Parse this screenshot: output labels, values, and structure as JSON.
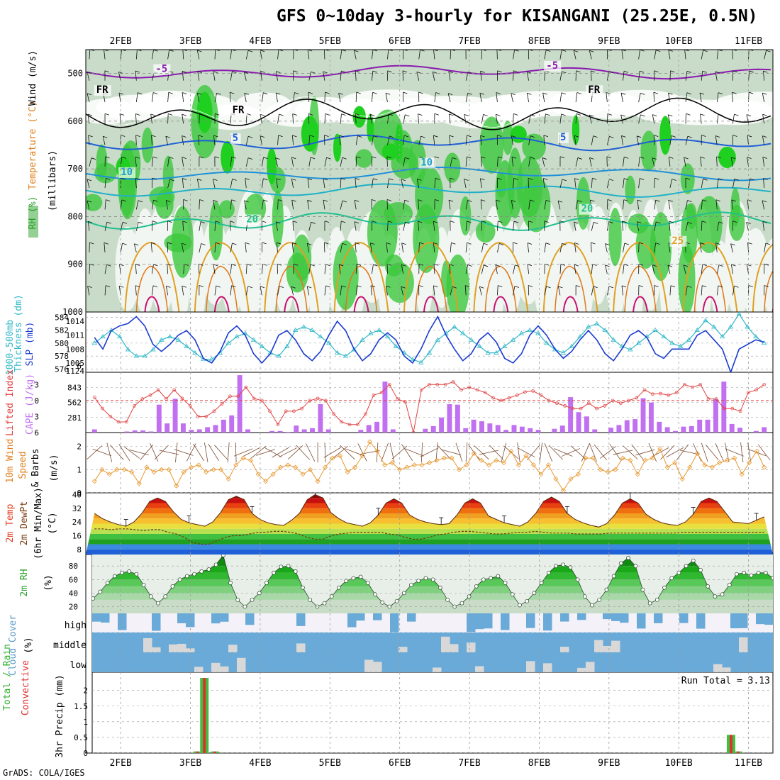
{
  "title": "GFS 0~10day 3-hourly for KISANGANI (25.25E, 0.5N)",
  "credit": "GrADS: COLA/IGES",
  "date_labels": [
    "2FEB",
    "3FEB",
    "4FEB",
    "5FEB",
    "6FEB",
    "7FEB",
    "8FEB",
    "9FEB",
    "10FEB",
    "11FEB"
  ],
  "colors": {
    "rh_green": "#3cc83c",
    "rh_light": "#d6e8d6",
    "temp_purple": "#8a1ab0",
    "temp_blue": "#1f5fd8",
    "temp_cyan": "#20b0c8",
    "temp_teal": "#20c090",
    "temp_orange": "#e0a020",
    "temp_magenta": "#c8106e",
    "slp_blue": "#1a3bd0",
    "thick_cyan": "#30b8c8",
    "lifted_red": "#e04040",
    "cape_purple": "#c070f0",
    "wind_orange": "#e89830",
    "rh_line": "#2a9a2a",
    "cloud_blue": "#6aaad8",
    "cloud_gray": "#d8d8d8",
    "precip_green": "#40c040",
    "precip_red": "#e03030"
  },
  "chart_data": [
    {
      "id": "upper_air",
      "type": "heatmap",
      "title": "Wind (m/s) / Temperature (°C) / RH (%)",
      "ylabel": "(millibars)",
      "y_ticks": [
        500,
        600,
        700,
        800,
        900,
        1000
      ],
      "ylim": [
        1000,
        450
      ],
      "ylabels": [
        {
          "text": "RH (%)",
          "color": "#2aa02a"
        },
        {
          "text": "Temperature (°C)",
          "color": "#e08020"
        },
        {
          "text": "Wind (m/s)",
          "color": "#000000"
        },
        {
          "text": "(millibars)",
          "color": "#000000"
        }
      ],
      "contour_labels": [
        {
          "text": "-5",
          "color": "#8a1ab0"
        },
        {
          "text": "-5",
          "color": "#8a1ab0"
        },
        {
          "text": "FR",
          "color": "#000000"
        },
        {
          "text": "FR",
          "color": "#000000"
        },
        {
          "text": "FR",
          "color": "#000000"
        },
        {
          "text": "5",
          "color": "#1f5fd8"
        },
        {
          "text": "5",
          "color": "#1f5fd8"
        },
        {
          "text": "10",
          "color": "#20a0d0"
        },
        {
          "text": "10",
          "color": "#20a0d0"
        },
        {
          "text": "20",
          "color": "#20c090"
        },
        {
          "text": "20",
          "color": "#20c090"
        },
        {
          "text": "25",
          "color": "#e0a020"
        }
      ]
    },
    {
      "id": "thickness_slp",
      "type": "line",
      "title": "1000-500mb Thickness (dm) / SLP (mb)",
      "left_ticks": [
        576,
        578,
        580,
        582,
        584
      ],
      "right_ticks": [
        1124,
        1005,
        1008,
        1011,
        1014
      ],
      "ylabels": [
        {
          "text": "1000-500mb",
          "color": "#30b8c8"
        },
        {
          "text": "Thickness (dm)",
          "color": "#30b8c8"
        },
        {
          "text": "SLP (mb)",
          "color": "#1a3bd0"
        }
      ],
      "series": [
        {
          "name": "SLP (mb)",
          "values": [
            1010.5,
            1008,
            1012,
            1013,
            1013.5,
            1015,
            1013,
            1009,
            1007.5,
            1009,
            1011,
            1012,
            1010,
            1006,
            1005,
            1007.5,
            1011.5,
            1013,
            1011,
            1007,
            1005,
            1007,
            1011,
            1012,
            1010,
            1007,
            1005.5,
            1007.5,
            1011,
            1014,
            1012,
            1008,
            1005.5,
            1007,
            1010,
            1011.5,
            1010,
            1006.5,
            1005,
            1008,
            1012,
            1015,
            1011,
            1008,
            1005.5,
            1007,
            1010,
            1011.5,
            1009.5,
            1006,
            1005,
            1007,
            1011,
            1013,
            1011,
            1008,
            1006,
            1007.5,
            1010,
            1012,
            1010,
            1007,
            1005.5,
            1008,
            1011,
            1012,
            1010.5,
            1007,
            1006,
            1008,
            1008,
            1008,
            1011,
            1012,
            1010,
            1008,
            1003,
            1008,
            1009,
            1010,
            1009.5
          ]
        },
        {
          "name": "Thickness (dm)",
          "values": [
            580,
            581,
            582,
            581,
            579,
            578,
            578,
            579,
            580.5,
            581,
            580.5,
            579.5,
            578.5,
            577.5,
            577.5,
            578.5,
            580,
            581,
            581.5,
            580.5,
            579.5,
            578.5,
            578,
            579.5,
            582,
            582.5,
            582,
            581,
            580,
            578.5,
            578,
            579,
            580.5,
            581.5,
            582,
            581,
            579.5,
            578.5,
            577.5,
            577,
            578.5,
            580.5,
            581.5,
            582.5,
            581.5,
            580.5,
            579.5,
            578.5,
            578.5,
            579.5,
            580.5,
            581.5,
            582,
            581.5,
            580,
            579,
            578.5,
            579.5,
            581,
            582.5,
            583,
            582,
            580.5,
            579.5,
            579,
            580,
            581,
            582,
            581,
            580,
            579.5,
            580.5,
            582,
            583.5,
            582.5,
            581,
            582.5,
            584.5,
            582.5,
            581,
            580
          ]
        }
      ]
    },
    {
      "id": "lifted_cape",
      "type": "bar",
      "title": "Lifted Index / CAPE (J/kg)",
      "left_ticks": [
        -3,
        0,
        3,
        6
      ],
      "right_ticks": [
        843,
        562,
        281
      ],
      "ylabels": [
        {
          "text": "Lifted Index",
          "color": "#e04040"
        },
        {
          "text": "CAPE (J/kg)",
          "color": "#c070f0"
        }
      ],
      "series": [
        {
          "name": "CAPE (J/kg)",
          "values": [
            60,
            0,
            0,
            0,
            20,
            40,
            40,
            20,
            520,
            170,
            630,
            170,
            50,
            60,
            100,
            140,
            240,
            320,
            1070,
            60,
            0,
            0,
            30,
            30,
            10,
            130,
            60,
            80,
            530,
            60,
            0,
            0,
            0,
            50,
            140,
            200,
            950,
            60,
            0,
            0,
            0,
            70,
            120,
            280,
            530,
            520,
            80,
            240,
            210,
            170,
            140,
            50,
            140,
            110,
            80,
            50,
            0,
            70,
            130,
            660,
            380,
            300,
            60,
            0,
            90,
            140,
            230,
            250,
            640,
            560,
            200,
            100,
            30,
            110,
            120,
            240,
            240,
            620,
            950,
            160,
            90,
            0,
            30,
            100
          ]
        },
        {
          "name": "Lifted Index",
          "values": [
            -0.6,
            1.5,
            3,
            4,
            4,
            1,
            -0.3,
            -1,
            -2,
            -0.3,
            -2,
            -0.4,
            1,
            3,
            3,
            2,
            0.6,
            -0.8,
            -0.8,
            -2.5,
            -0.4,
            0,
            2,
            4.5,
            2,
            2,
            1.5,
            0,
            -0.4,
            0,
            2.5,
            4,
            4.5,
            4.5,
            2.5,
            -1,
            -1.5,
            -3,
            -0.3,
            0.3,
            6,
            -2,
            -3,
            -3,
            -3,
            -3.5,
            -2,
            -2.5,
            -2,
            -1.5,
            -0.5,
            0,
            -0.5,
            -1,
            -1.6,
            -1.8,
            -1,
            0,
            0.5,
            1,
            1.5,
            1.5,
            0.5,
            1.5,
            1,
            0,
            0.5,
            0,
            -0.5,
            -2,
            -1.2,
            -1.3,
            -1,
            -1.5,
            -3,
            -2.5,
            -3,
            -0.3,
            -0.3,
            1.5,
            1.5,
            2,
            -1.5,
            -2,
            -3
          ]
        }
      ]
    },
    {
      "id": "wind10m",
      "type": "line",
      "title": "10m Wind Speed & Barbs (m/s)",
      "left_ticks": [
        0,
        1,
        2
      ],
      "ylabels": [
        {
          "text": "10m Wind",
          "color": "#e08020"
        },
        {
          "text": "Speed",
          "color": "#e08020"
        },
        {
          "text": "& Barbs",
          "color": "#000000"
        },
        {
          "text": "(m/s)",
          "color": "#000000"
        }
      ],
      "series": [
        {
          "name": "Wind speed (m/s)",
          "values": [
            0.5,
            1,
            0.8,
            1,
            1,
            0.9,
            0.4,
            1.1,
            0.9,
            1,
            1,
            0.3,
            0.9,
            1.1,
            1.2,
            0.9,
            1,
            1,
            0.6,
            1.2,
            1.5,
            1.4,
            0.8,
            0.5,
            0.8,
            1.1,
            1.2,
            1.1,
            0.8,
            1,
            0.5,
            1.1,
            1.5,
            1.6,
            0.9,
            1.1,
            1.6,
            2.2,
            1.8,
            1.2,
            1.3,
            1,
            1.1,
            1.2,
            1.2,
            1.3,
            1.4,
            1.5,
            1.5,
            1,
            1.2,
            1.7,
            1.4,
            1.2,
            1.4,
            1.3,
            1.8,
            1.2,
            1.6,
            1.2,
            0.8,
            1.2,
            0.6,
            0.1,
            0.6,
            0.8,
            1.5,
            1.5,
            1,
            0.9,
            1,
            1.5,
            1.4,
            0.8,
            1.4,
            1.5,
            1.9,
            1.1,
            1.3,
            0.6,
            1.1,
            1.7,
            1.2,
            1.1,
            1.3,
            1.4,
            1.5,
            0.8,
            1.3,
            1.8,
            1.1
          ]
        }
      ]
    },
    {
      "id": "temp2m",
      "type": "area",
      "title": "2m Temp / 2m DewPt (6hr Min/Max) (°C)",
      "left_ticks": [
        8,
        16,
        24,
        32,
        40
      ],
      "ylabels": [
        {
          "text": "2m Temp",
          "color": "#e04020"
        },
        {
          "text": "2m DewPt",
          "color": "#7a3a10"
        },
        {
          "text": "(6hr Min/Max)",
          "color": "#000000"
        },
        {
          "text": "(°C)",
          "color": "#000000"
        }
      ],
      "series": [
        {
          "name": "2m Temp (°C)",
          "values": [
            29,
            26,
            24,
            22.5,
            21.5,
            24,
            29,
            36,
            38,
            36,
            30,
            25.5,
            23.5,
            22.5,
            21.5,
            24,
            29.5,
            37,
            39,
            37,
            29,
            25.5,
            23.5,
            22.5,
            22,
            25,
            29,
            37,
            40,
            38,
            29.5,
            26,
            23.5,
            22.5,
            21.5,
            23.5,
            28,
            35,
            37.5,
            35,
            28,
            25.5,
            24,
            23,
            22.5,
            23,
            28,
            35,
            37.5,
            35,
            27.5,
            25.5,
            23.5,
            22.5,
            21.5,
            24,
            29,
            36,
            38.5,
            36,
            29,
            25.5,
            23.5,
            22,
            21,
            23,
            28,
            35,
            37.5,
            35,
            28.5,
            25.5,
            23.5,
            22.5,
            22,
            24,
            28.5,
            36,
            38,
            36,
            30,
            24,
            23.5,
            23,
            25,
            27
          ]
        },
        {
          "name": "2m DewPt (°C)",
          "values": [
            20,
            20,
            19.5,
            20,
            20,
            19.5,
            19,
            19.5,
            19.5,
            18,
            17,
            15,
            12,
            11,
            11,
            13,
            15,
            16,
            16,
            17,
            18,
            18,
            18.5,
            18.5,
            18,
            17,
            15,
            14,
            14,
            16,
            17,
            17.5,
            18,
            18,
            18,
            18,
            17,
            16.5,
            15,
            14,
            14,
            15,
            16.5,
            17,
            18,
            18.5,
            18.5,
            18,
            17.5,
            17,
            17,
            17.5,
            18,
            18,
            18.5,
            18,
            17.5,
            17.5,
            17.5,
            17,
            17,
            17,
            17,
            17.5,
            17.5,
            17.5,
            17.5,
            17.5,
            17.5,
            17.5,
            17.5,
            17.5,
            18,
            18,
            18,
            18,
            18,
            18,
            18,
            18,
            18,
            18,
            18
          ]
        }
      ]
    },
    {
      "id": "rh2m",
      "type": "area",
      "title": "2m RH (%)",
      "left_ticks": [
        20,
        40,
        60,
        80
      ],
      "ylabels": [
        {
          "text": "2m RH",
          "color": "#2aa02a"
        },
        {
          "text": "(%)",
          "color": "#000000"
        }
      ],
      "series": [
        {
          "name": "2m RH (%)",
          "values": [
            35,
            32,
            42,
            55,
            65,
            70,
            72,
            68,
            52,
            35,
            25,
            35,
            50,
            60,
            65,
            68,
            72,
            75,
            82,
            96,
            55,
            30,
            20,
            30,
            40,
            55,
            70,
            79,
            80,
            72,
            48,
            30,
            20,
            25,
            35,
            48,
            58,
            62,
            64,
            55,
            38,
            26,
            20,
            28,
            40,
            52,
            58,
            62,
            60,
            48,
            30,
            20,
            25,
            35,
            50,
            60,
            62,
            65,
            55,
            38,
            22,
            28,
            40,
            55,
            70,
            80,
            82,
            78,
            60,
            35,
            22,
            30,
            45,
            65,
            84,
            92,
            80,
            45,
            25,
            30,
            48,
            62,
            70,
            80,
            88,
            74,
            50,
            35,
            38,
            52,
            68,
            70,
            66,
            70,
            70,
            62
          ]
        }
      ]
    },
    {
      "id": "cloud",
      "type": "heatmap",
      "title": "Cloud Cover (%)",
      "categories": [
        "high",
        "middle",
        "low"
      ],
      "ylabels": [
        {
          "text": "Cloud Cover",
          "color": "#5a9ac8"
        },
        {
          "text": "(%)",
          "color": "#000000"
        }
      ]
    },
    {
      "id": "precip",
      "type": "bar",
      "title": "3hr Precip (mm) — Total / Rain / Convective",
      "left_ticks": [
        0,
        0.5,
        1,
        1.5,
        2
      ],
      "ylim": [
        0,
        2.4
      ],
      "annotation": "Run Total = 3.13",
      "ylabels": [
        {
          "text": "Total / Rain",
          "color": "#30b030"
        },
        {
          "text": "Convective",
          "color": "#e03030"
        },
        {
          "text": "3hr Precip (mm)",
          "color": "#000000"
        }
      ],
      "bars": [
        {
          "day": 3.1,
          "value": 0.05
        },
        {
          "day": 3.2,
          "value": 2.4
        },
        {
          "day": 3.35,
          "value": 0.05
        },
        {
          "day": 10.75,
          "value": 0.58
        },
        {
          "day": 10.85,
          "value": 0.05
        }
      ]
    }
  ]
}
